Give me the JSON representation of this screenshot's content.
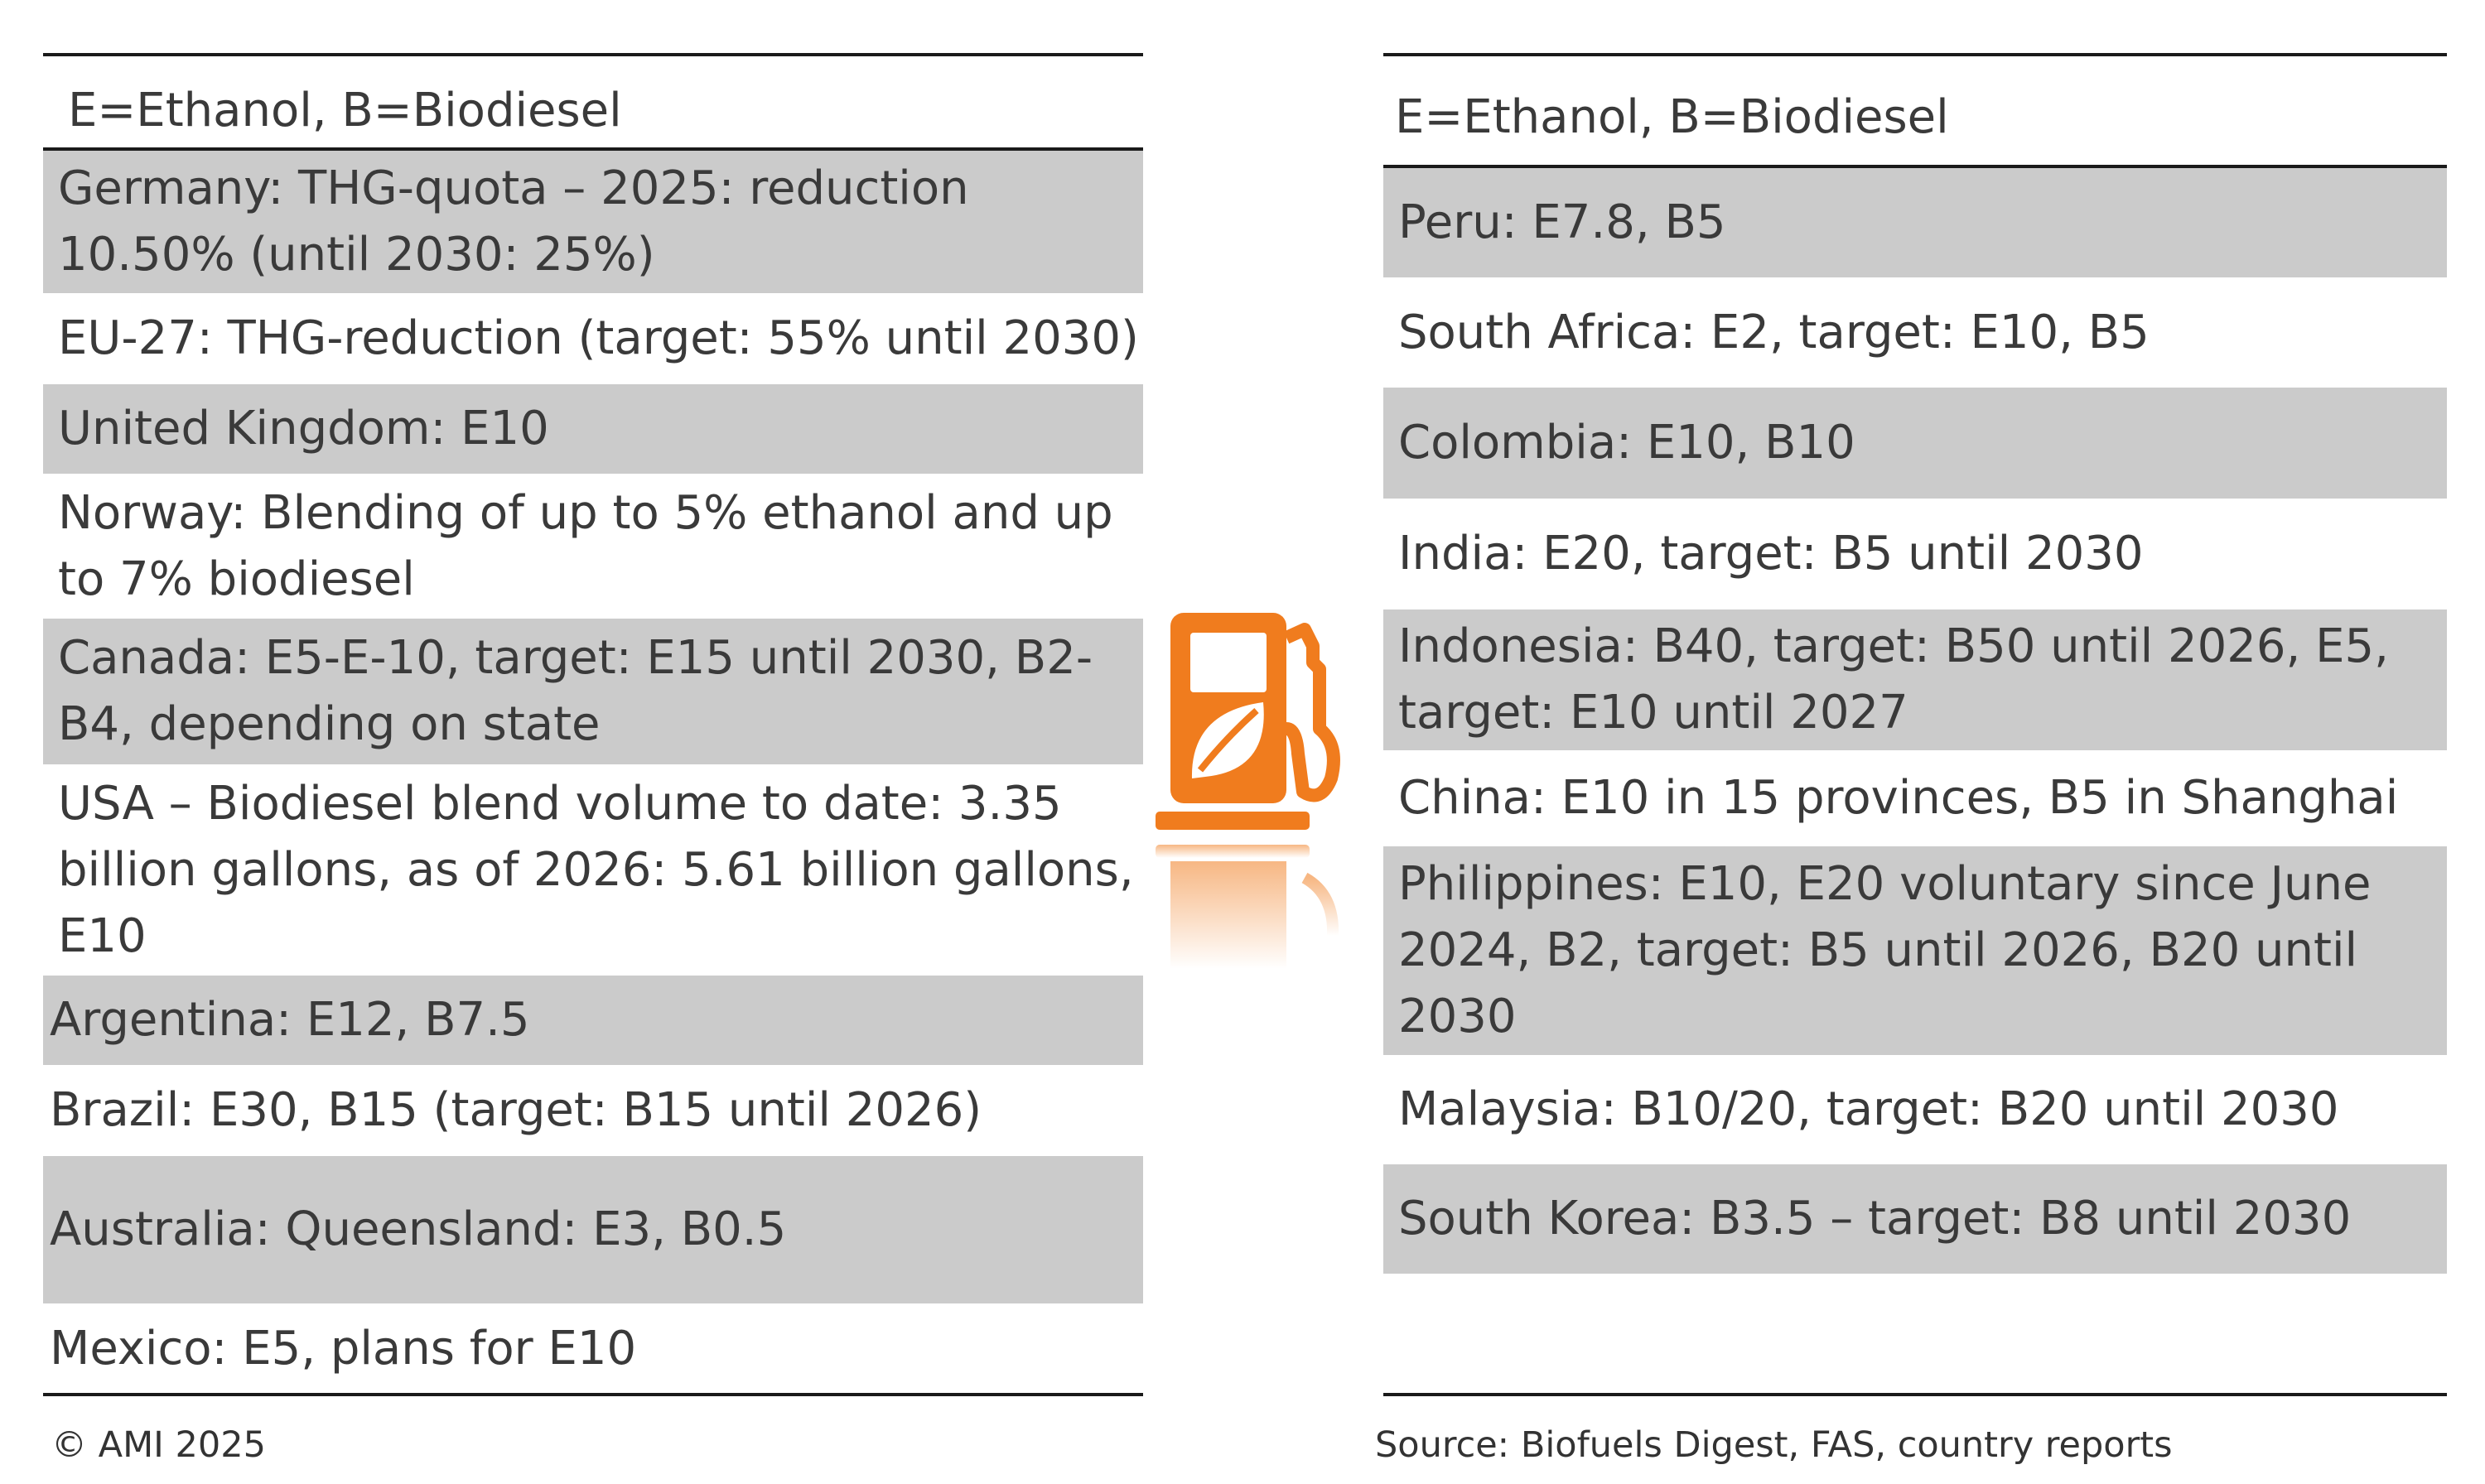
{
  "colors": {
    "accent": "#f07c1e",
    "row_shade": "#cbcbcb",
    "rule": "#1a1a1a"
  },
  "left_table": {
    "header": "E=Ethanol, B=Biodiesel",
    "rows": [
      {
        "text": "Germany: THG-quota – 2025: reduction 10.50% (until 2030: 25%)",
        "shaded": true
      },
      {
        "text": "EU-27: THG-reduction (target: 55% until 2030)",
        "shaded": false
      },
      {
        "text": "United Kingdom: E10",
        "shaded": true
      },
      {
        "text": "Norway: Blending of up to 5% ethanol and up to 7% biodiesel",
        "shaded": false
      },
      {
        "text": "Canada: E5-E-10, target: E15 until 2030, B2-B4, depending on state",
        "shaded": true
      },
      {
        "text": "USA – Biodiesel blend volume to date: 3.35 billion gallons, as of 2026: 5.61 billion gallons, E10",
        "shaded": false
      },
      {
        "text": "Argentina: E12, B7.5",
        "shaded": true
      },
      {
        "text": "Brazil: E30, B15 (target: B15 until 2026)",
        "shaded": false
      },
      {
        "text": "Australia: Queensland: E3, B0.5",
        "shaded": true
      },
      {
        "text": "Mexico: E5, plans for E10",
        "shaded": false
      }
    ]
  },
  "right_table": {
    "header": "E=Ethanol, B=Biodiesel",
    "rows": [
      {
        "text": "Peru: E7.8, B5",
        "shaded": true
      },
      {
        "text": "South Africa: E2, target: E10, B5",
        "shaded": false
      },
      {
        "text": "Colombia: E10, B10",
        "shaded": true
      },
      {
        "text": "India: E20, target: B5 until 2030",
        "shaded": false
      },
      {
        "text": "Indonesia: B40, target: B50 until 2026, E5, target: E10 until 2027",
        "shaded": true
      },
      {
        "text": "China: E10 in 15 provinces, B5 in Shanghai",
        "shaded": false
      },
      {
        "text": "Philippines: E10, E20 voluntary since June 2024, B2, target: B5 until 2026, B20 until 2030",
        "shaded": true
      },
      {
        "text": "Malaysia: B10/20, target: B20 until 2030",
        "shaded": false
      },
      {
        "text": "South Korea: B3.5 – target: B8 until 2030",
        "shaded": true
      }
    ]
  },
  "footer": {
    "copyright": "© AMI 2025",
    "source": "Source: Biofuels Digest, FAS, country reports"
  },
  "icon": {
    "name": "fuel-pump-leaf-icon"
  }
}
